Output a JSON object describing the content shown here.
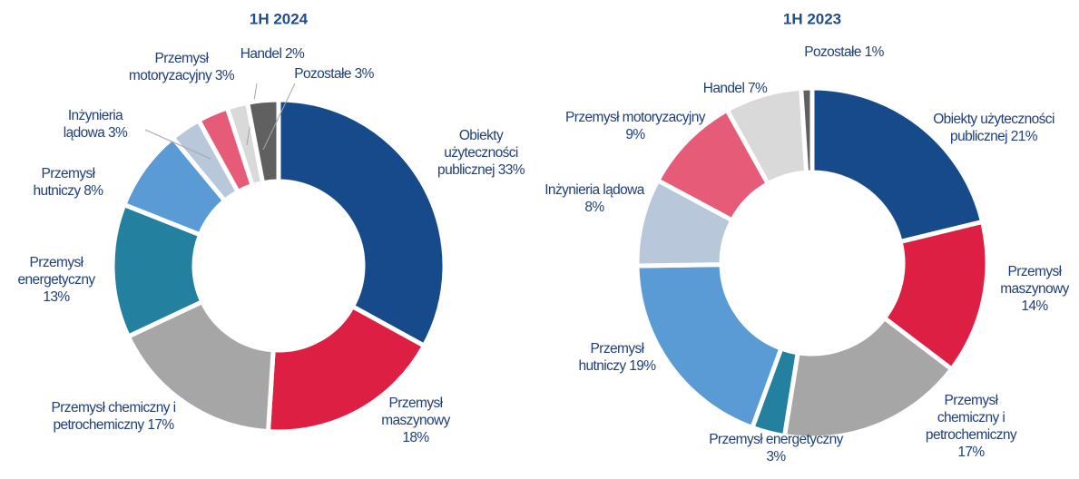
{
  "chart_data": [
    {
      "type": "pie",
      "donut": true,
      "title": "1H 2024",
      "categories": [
        "Obiekty użyteczności publicznej",
        "Przemysł maszynowy",
        "Przemysł chemiczny i petrochemiczny",
        "Przemysł energetyczny",
        "Przemysł hutniczy",
        "Inżynieria lądowa",
        "Przemysł motoryzacyjny",
        "Handel",
        "Pozostałe"
      ],
      "values": [
        33,
        18,
        17,
        13,
        8,
        3,
        3,
        2,
        3
      ],
      "value_labels": [
        "33%",
        "18%",
        "17%",
        "13%",
        "8%",
        "3%",
        "3%",
        "2%",
        "3%"
      ],
      "colors": [
        "#174a8a",
        "#dc1f43",
        "#a6a6a6",
        "#23809e",
        "#5b9bd5",
        "#b8c7d9",
        "#e65c78",
        "#d9d9d9",
        "#606060"
      ]
    },
    {
      "type": "pie",
      "donut": true,
      "title": "1H 2023",
      "categories": [
        "Obiekty użyteczności publicznej",
        "Przemysł maszynowy",
        "Przemysł chemiczny i petrochemiczny",
        "Przemysł energetyczny",
        "Przemysł hutniczy",
        "Inżynieria lądowa",
        "Przemysł motoryzacyjny",
        "Handel",
        "Pozostałe"
      ],
      "values": [
        21,
        14,
        17,
        3,
        19,
        8,
        9,
        7,
        1
      ],
      "value_labels": [
        "21%",
        "14%",
        "17%",
        "3%",
        "19%",
        "8%",
        "9%",
        "7%",
        "1%"
      ],
      "colors": [
        "#174a8a",
        "#dc1f43",
        "#a6a6a6",
        "#23809e",
        "#5b9bd5",
        "#b8c7d9",
        "#e65c78",
        "#d9d9d9",
        "#606060"
      ]
    }
  ]
}
